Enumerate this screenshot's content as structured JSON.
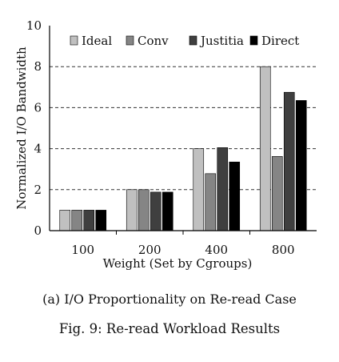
{
  "chart_data": {
    "type": "bar",
    "categories": [
      "100",
      "200",
      "400",
      "800"
    ],
    "series": [
      {
        "name": "Ideal",
        "color": "#c0c0c0",
        "values": [
          1,
          2,
          4,
          8
        ]
      },
      {
        "name": "Conv",
        "color": "#858585",
        "values": [
          1,
          2,
          2.78,
          3.62
        ]
      },
      {
        "name": "Justitia",
        "color": "#3f3f3f",
        "values": [
          1,
          1.88,
          4.05,
          6.75
        ]
      },
      {
        "name": "Direct",
        "color": "#000000",
        "values": [
          1,
          1.88,
          3.35,
          6.35
        ]
      }
    ],
    "xlabel": "Weight (Set by Cgroups)",
    "ylabel": "Normalized I/O Bandwidth",
    "ylim": [
      0,
      10
    ],
    "yticks": [
      0,
      2,
      4,
      6,
      8,
      10
    ],
    "grid": "horizontal dashed",
    "legend": "top"
  },
  "subcaption": "(a) I/O Proportionality on Re-read Case",
  "figcaption": "Fig. 9: Re-read Workload Results"
}
